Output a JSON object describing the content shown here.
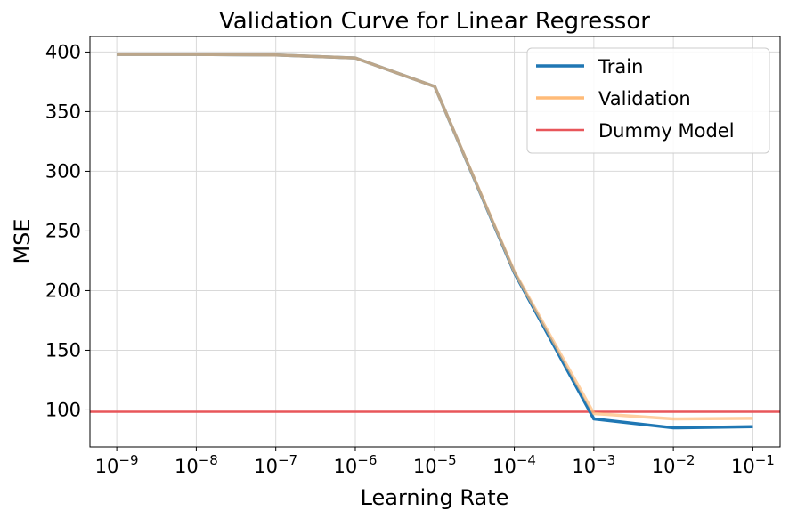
{
  "chart_data": {
    "type": "line",
    "title": "Validation Curve for Linear Regressor",
    "xlabel": "Learning Rate",
    "ylabel": "MSE",
    "xscale": "log",
    "x": [
      1e-09,
      1e-08,
      1e-07,
      1e-06,
      1e-05,
      0.0001,
      0.001,
      0.01,
      0.1
    ],
    "x_tick_labels": [
      {
        "base": "10",
        "exp": "−9"
      },
      {
        "base": "10",
        "exp": "−8"
      },
      {
        "base": "10",
        "exp": "−7"
      },
      {
        "base": "10",
        "exp": "−6"
      },
      {
        "base": "10",
        "exp": "−5"
      },
      {
        "base": "10",
        "exp": "−4"
      },
      {
        "base": "10",
        "exp": "−3"
      },
      {
        "base": "10",
        "exp": "−2"
      },
      {
        "base": "10",
        "exp": "−1"
      }
    ],
    "xlim": [
      4.6e-10,
      0.22
    ],
    "ylim": [
      69,
      413
    ],
    "y_ticks": [
      100,
      150,
      200,
      250,
      300,
      350,
      400
    ],
    "y_tick_labels": [
      "100",
      "150",
      "200",
      "250",
      "300",
      "350",
      "400"
    ],
    "series": [
      {
        "name": "Train",
        "color": "#1f77b4",
        "values": [
          398,
          398,
          397.5,
          395,
          371,
          215,
          92.5,
          85,
          86
        ]
      },
      {
        "name": "Validation",
        "color": "#ffbb78",
        "values": [
          398,
          398,
          397.5,
          395,
          371,
          216,
          97,
          92.5,
          93
        ]
      }
    ],
    "reference_lines": [
      {
        "name": "Dummy Model",
        "color": "#e8565a",
        "y": 98.5
      }
    ],
    "grid": true,
    "legend_position": "top-right"
  }
}
